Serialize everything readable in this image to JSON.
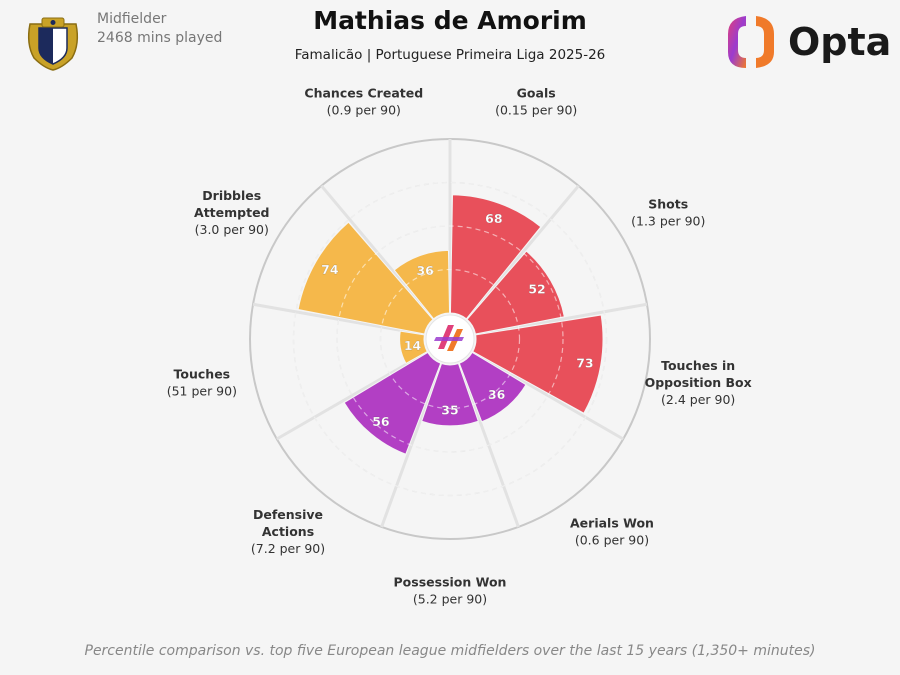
{
  "header": {
    "position": "Midfielder",
    "minutes": "2468 mins played",
    "player_name": "Mathias de Amorim",
    "subtitle": "Famalicão | Portuguese Primeira Liga 2025-26",
    "brand": "Opta"
  },
  "footnote": "Percentile comparison vs. top five European league midfielders over the last 15 years (1,350+ minutes)",
  "colors": {
    "attack": "#e8505b",
    "defence": "#b23fc4",
    "possession": "#f5b84b",
    "background": "#f5f5f5"
  },
  "chart_data": {
    "type": "radar-bar",
    "scale": [
      0,
      100
    ],
    "metrics": [
      {
        "name": "Goals",
        "per90": "(0.15 per 90)",
        "percentile": 68,
        "group": "attack"
      },
      {
        "name": "Shots",
        "per90": "(1.3 per 90)",
        "percentile": 52,
        "group": "attack"
      },
      {
        "name": "Touches in Opposition Box",
        "label_lines": [
          "Touches in",
          "Opposition Box"
        ],
        "per90": "(2.4 per 90)",
        "percentile": 73,
        "group": "attack"
      },
      {
        "name": "Aerials Won",
        "per90": "(0.6 per 90)",
        "percentile": 36,
        "group": "defence"
      },
      {
        "name": "Possession Won",
        "per90": "(5.2 per 90)",
        "percentile": 35,
        "group": "defence"
      },
      {
        "name": "Defensive Actions",
        "label_lines": [
          "Defensive",
          "Actions"
        ],
        "per90": "(7.2 per 90)",
        "percentile": 56,
        "group": "defence"
      },
      {
        "name": "Touches",
        "per90": "(51 per 90)",
        "percentile": 14,
        "group": "possession"
      },
      {
        "name": "Dribbles Attempted",
        "label_lines": [
          "Dribbles",
          "Attempted"
        ],
        "per90": "(3.0 per 90)",
        "percentile": 74,
        "group": "possession"
      },
      {
        "name": "Chances Created",
        "per90": "(0.9 per 90)",
        "percentile": 36,
        "group": "possession"
      }
    ]
  }
}
